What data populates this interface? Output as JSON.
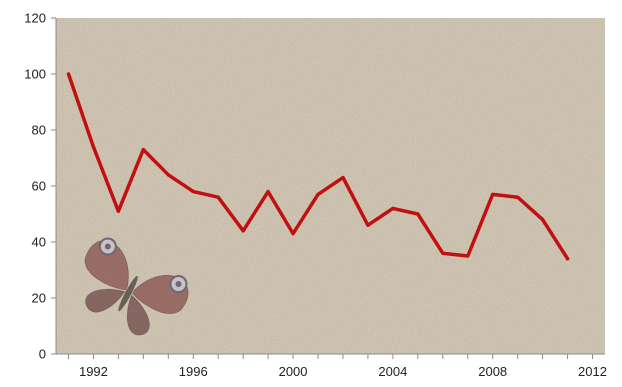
{
  "chart_data": {
    "type": "line",
    "title": "",
    "xlabel": "",
    "ylabel": "",
    "x": [
      1991,
      1992,
      1993,
      1994,
      1995,
      1996,
      1997,
      1998,
      1999,
      2000,
      2001,
      2002,
      2003,
      2004,
      2005,
      2006,
      2007,
      2008,
      2009,
      2010,
      2011,
      2012
    ],
    "series": [
      {
        "values": [
          100,
          74,
          51,
          73,
          64,
          58,
          56,
          44,
          58,
          43,
          57,
          63,
          46,
          52,
          50,
          36,
          35,
          57,
          56,
          48,
          34,
          null
        ]
      }
    ],
    "xlim": [
      1990.5,
      2012.5
    ],
    "ylim": [
      0,
      120
    ],
    "xticks": [
      1992,
      1996,
      2000,
      2004,
      2008,
      2012
    ],
    "yticks": [
      0,
      20,
      40,
      60,
      80,
      100,
      120
    ],
    "grid": false,
    "legend": "none",
    "colors": {
      "line": "#c01010",
      "plot_background": "#d8cebd",
      "axis": "#8a8a8a"
    },
    "decoration": "peacock-butterfly-image"
  }
}
